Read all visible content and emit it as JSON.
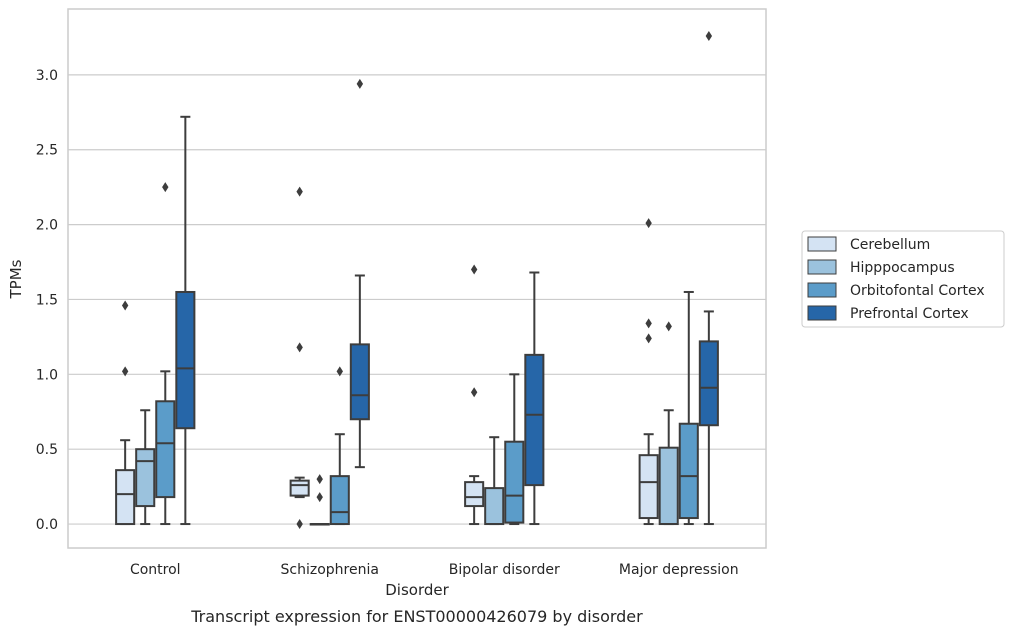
{
  "chart_data": {
    "type": "box",
    "title": "",
    "xlabel": "Disorder",
    "ylabel": "TPMs",
    "caption": "Transcript expression for ENST00000426079 by disorder",
    "ylim": [
      -0.16,
      3.44
    ],
    "yticks": [
      "0.0",
      "0.5",
      "1.0",
      "1.5",
      "2.0",
      "2.5",
      "3.0"
    ],
    "grid": "horizontal",
    "legend_position": "right",
    "categories": [
      "Control",
      "Schizophrenia",
      "Bipolar disorder",
      "Major depression"
    ],
    "series": [
      {
        "name": "Cerebellum",
        "color": "#d4e3f3",
        "boxes": [
          {
            "whisker_low": 0.0,
            "q1": 0.0,
            "median": 0.2,
            "q3": 0.36,
            "whisker_high": 0.56,
            "outliers": [
              1.02,
              1.46
            ]
          },
          {
            "whisker_low": 0.18,
            "q1": 0.19,
            "median": 0.26,
            "q3": 0.29,
            "whisker_high": 0.31,
            "outliers": [
              0.0,
              1.18,
              2.22
            ]
          },
          {
            "whisker_low": 0.0,
            "q1": 0.12,
            "median": 0.18,
            "q3": 0.28,
            "whisker_high": 0.32,
            "outliers": [
              0.88,
              1.7
            ]
          },
          {
            "whisker_low": 0.0,
            "q1": 0.04,
            "median": 0.28,
            "q3": 0.46,
            "whisker_high": 0.6,
            "outliers": [
              1.24,
              1.34,
              2.01
            ]
          }
        ]
      },
      {
        "name": "Hipppocampus",
        "color": "#9bc2dd",
        "boxes": [
          {
            "whisker_low": 0.0,
            "q1": 0.12,
            "median": 0.42,
            "q3": 0.5,
            "whisker_high": 0.76,
            "outliers": []
          },
          {
            "whisker_low": 0.0,
            "q1": 0.0,
            "median": 0.0,
            "q3": 0.0,
            "whisker_high": 0.0,
            "outliers": [
              0.18,
              0.3
            ]
          },
          {
            "whisker_low": 0.0,
            "q1": 0.0,
            "median": 0.0,
            "q3": 0.24,
            "whisker_high": 0.58,
            "outliers": []
          },
          {
            "whisker_low": 0.0,
            "q1": 0.0,
            "median": 0.0,
            "q3": 0.51,
            "whisker_high": 0.76,
            "outliers": [
              1.32
            ]
          }
        ]
      },
      {
        "name": "Orbitofontal Cortex",
        "color": "#5b9cc9",
        "boxes": [
          {
            "whisker_low": 0.0,
            "q1": 0.18,
            "median": 0.54,
            "q3": 0.82,
            "whisker_high": 1.02,
            "outliers": [
              2.25
            ]
          },
          {
            "whisker_low": 0.0,
            "q1": 0.0,
            "median": 0.08,
            "q3": 0.32,
            "whisker_high": 0.6,
            "outliers": [
              1.02
            ]
          },
          {
            "whisker_low": 0.0,
            "q1": 0.01,
            "median": 0.19,
            "q3": 0.55,
            "whisker_high": 1.0,
            "outliers": []
          },
          {
            "whisker_low": 0.0,
            "q1": 0.04,
            "median": 0.32,
            "q3": 0.67,
            "whisker_high": 1.55,
            "outliers": []
          }
        ]
      },
      {
        "name": "Prefrontal Cortex",
        "color": "#2666a8",
        "boxes": [
          {
            "whisker_low": 0.0,
            "q1": 0.64,
            "median": 1.04,
            "q3": 1.55,
            "whisker_high": 2.72,
            "outliers": []
          },
          {
            "whisker_low": 0.38,
            "q1": 0.7,
            "median": 0.86,
            "q3": 1.2,
            "whisker_high": 1.66,
            "outliers": [
              2.94
            ]
          },
          {
            "whisker_low": 0.0,
            "q1": 0.26,
            "median": 0.73,
            "q3": 1.13,
            "whisker_high": 1.68,
            "outliers": []
          },
          {
            "whisker_low": 0.0,
            "q1": 0.66,
            "median": 0.91,
            "q3": 1.22,
            "whisker_high": 1.42,
            "outliers": [
              3.26
            ]
          }
        ]
      }
    ]
  }
}
